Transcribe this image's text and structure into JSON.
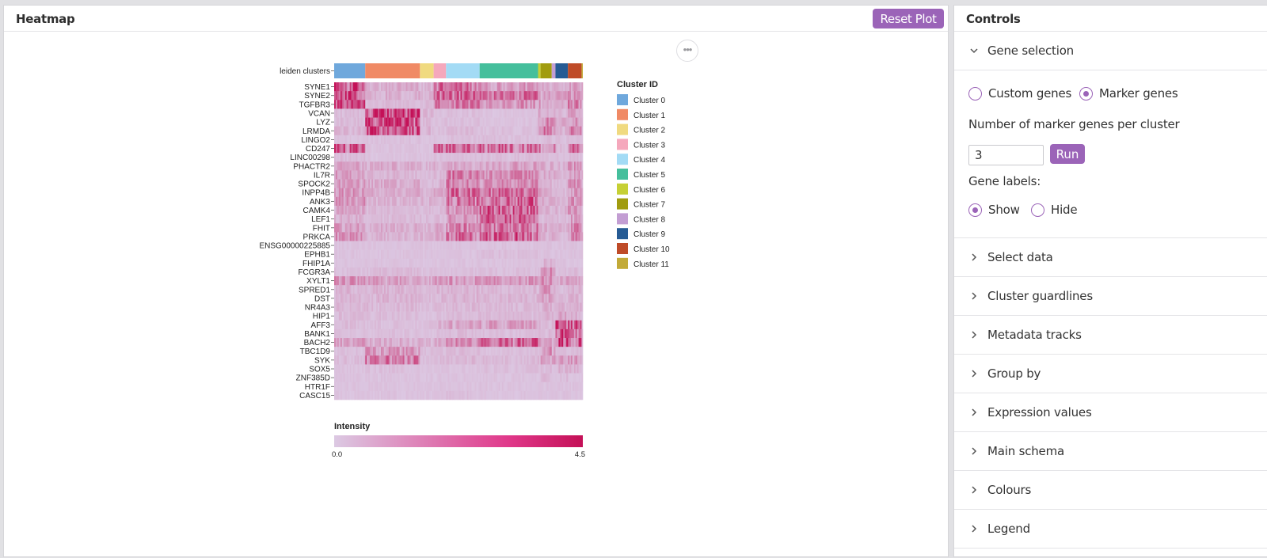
{
  "heatmap_panel": {
    "title": "Heatmap",
    "reset_label": "Reset Plot",
    "more_label": "•••"
  },
  "chart_data": {
    "type": "heatmap",
    "track_label": "leiden clusters",
    "genes": [
      "SYNE1",
      "SYNE2",
      "TGFBR3",
      "VCAN",
      "LYZ",
      "LRMDA",
      "LINGO2",
      "CD247",
      "LINC00298",
      "PHACTR2",
      "IL7R",
      "SPOCK2",
      "INPP4B",
      "ANK3",
      "CAMK4",
      "LEF1",
      "FHIT",
      "PRKCA",
      "ENSG00000225885",
      "EPHB1",
      "FHIP1A",
      "FCGR3A",
      "XYLT1",
      "SPRED1",
      "DST",
      "NR4A3",
      "HIP1",
      "AFF3",
      "BANK1",
      "BACH2",
      "TBC1D9",
      "SYK",
      "SOX5",
      "ZNF385D",
      "HTR1F",
      "CASC15"
    ],
    "legend_title": "Cluster ID",
    "clusters": [
      {
        "name": "Cluster 0",
        "color": "#6fa8dc",
        "proportion": 0.125
      },
      {
        "name": "Cluster 1",
        "color": "#f08a65",
        "proportion": 0.22
      },
      {
        "name": "Cluster 2",
        "color": "#f0da80",
        "proportion": 0.055
      },
      {
        "name": "Cluster 3",
        "color": "#f5a8bc",
        "proportion": 0.05
      },
      {
        "name": "Cluster 4",
        "color": "#a3dbf5",
        "proportion": 0.135
      },
      {
        "name": "Cluster 5",
        "color": "#45bf9c",
        "proportion": 0.235
      },
      {
        "name": "Cluster 6",
        "color": "#c6d035",
        "proportion": 0.01
      },
      {
        "name": "Cluster 7",
        "color": "#a19c0f",
        "proportion": 0.045
      },
      {
        "name": "Cluster 8",
        "color": "#c39ed3",
        "proportion": 0.015
      },
      {
        "name": "Cluster 9",
        "color": "#265b94",
        "proportion": 0.05
      },
      {
        "name": "Cluster 10",
        "color": "#bf4b28",
        "proportion": 0.055
      },
      {
        "name": "Cluster 11",
        "color": "#c2aa38",
        "proportion": 0.005
      }
    ],
    "expression": [
      [
        3.4,
        0.8,
        0.6,
        2.6,
        2.4,
        1.4,
        1.0,
        0.8,
        1.0,
        0.8,
        1.2,
        0.8
      ],
      [
        3.6,
        0.8,
        0.6,
        2.8,
        2.8,
        2.4,
        1.6,
        1.0,
        0.8,
        1.0,
        1.4,
        1.0
      ],
      [
        3.2,
        0.4,
        0.4,
        2.2,
        2.0,
        1.6,
        1.4,
        0.8,
        0.6,
        1.0,
        2.0,
        1.0
      ],
      [
        0.4,
        3.8,
        0.6,
        0.3,
        0.3,
        0.2,
        1.0,
        0.6,
        0.6,
        0.5,
        1.0,
        0.4
      ],
      [
        0.4,
        3.6,
        0.4,
        0.3,
        0.3,
        0.2,
        1.0,
        2.0,
        1.6,
        0.8,
        1.4,
        0.6
      ],
      [
        0.6,
        3.6,
        0.6,
        0.3,
        0.4,
        0.3,
        1.0,
        2.2,
        1.4,
        0.6,
        1.8,
        0.6
      ],
      [
        0.2,
        0.3,
        0.2,
        0.2,
        0.3,
        0.3,
        0.2,
        0.4,
        0.2,
        0.3,
        0.3,
        0.2
      ],
      [
        3.0,
        0.2,
        0.2,
        2.8,
        2.6,
        2.8,
        2.4,
        1.4,
        2.0,
        0.4,
        2.6,
        1.0
      ],
      [
        0.4,
        0.2,
        0.2,
        0.3,
        0.3,
        0.4,
        0.4,
        0.3,
        0.3,
        0.3,
        0.4,
        0.3
      ],
      [
        1.0,
        0.8,
        0.6,
        0.8,
        1.0,
        1.2,
        1.0,
        0.8,
        0.8,
        0.6,
        1.4,
        0.8
      ],
      [
        1.2,
        0.6,
        0.4,
        0.6,
        2.2,
        1.8,
        1.0,
        0.8,
        0.8,
        0.6,
        1.2,
        0.8
      ],
      [
        1.2,
        0.8,
        0.4,
        0.6,
        2.0,
        1.6,
        0.8,
        0.6,
        0.6,
        0.4,
        1.6,
        0.6
      ],
      [
        1.4,
        0.8,
        0.6,
        0.8,
        2.6,
        2.6,
        1.2,
        0.8,
        0.8,
        0.4,
        1.4,
        0.8
      ],
      [
        1.4,
        0.6,
        0.6,
        0.6,
        2.4,
        2.8,
        1.2,
        0.8,
        0.8,
        0.6,
        1.8,
        0.8
      ],
      [
        1.0,
        0.4,
        0.4,
        0.4,
        1.6,
        3.0,
        1.0,
        0.6,
        0.4,
        0.6,
        1.4,
        0.6
      ],
      [
        0.8,
        0.4,
        0.4,
        0.4,
        1.4,
        3.0,
        0.8,
        0.4,
        0.6,
        0.4,
        1.2,
        0.6
      ],
      [
        1.2,
        0.8,
        0.6,
        1.0,
        2.0,
        2.4,
        1.4,
        1.0,
        0.8,
        0.6,
        1.8,
        0.8
      ],
      [
        1.6,
        0.6,
        0.6,
        1.0,
        2.6,
        3.2,
        1.2,
        0.8,
        0.8,
        0.6,
        1.8,
        0.8
      ],
      [
        0.2,
        0.2,
        0.2,
        0.2,
        0.2,
        0.2,
        0.2,
        0.2,
        0.2,
        0.2,
        0.2,
        0.2
      ],
      [
        0.2,
        0.2,
        0.2,
        0.2,
        0.2,
        0.3,
        0.2,
        0.2,
        0.2,
        0.2,
        0.2,
        0.2
      ],
      [
        0.2,
        0.2,
        0.2,
        0.2,
        0.2,
        0.2,
        0.2,
        0.6,
        0.4,
        0.2,
        0.2,
        0.2
      ],
      [
        0.3,
        0.4,
        0.3,
        0.3,
        0.3,
        0.3,
        0.4,
        1.6,
        0.8,
        0.3,
        0.4,
        0.3
      ],
      [
        1.6,
        1.2,
        1.0,
        1.4,
        1.4,
        1.4,
        1.2,
        1.6,
        1.2,
        1.0,
        1.2,
        1.0
      ],
      [
        0.6,
        0.6,
        0.4,
        0.6,
        0.6,
        0.5,
        0.6,
        1.4,
        0.8,
        0.4,
        0.6,
        0.4
      ],
      [
        0.6,
        0.6,
        0.4,
        0.6,
        0.6,
        0.6,
        0.6,
        1.2,
        0.8,
        0.4,
        0.8,
        0.4
      ],
      [
        0.5,
        0.5,
        0.3,
        0.4,
        0.5,
        0.5,
        0.5,
        0.8,
        0.6,
        0.6,
        0.6,
        0.4
      ],
      [
        0.4,
        0.4,
        0.2,
        0.3,
        0.4,
        0.4,
        0.4,
        0.6,
        0.6,
        1.0,
        0.8,
        0.4
      ],
      [
        0.4,
        0.3,
        0.3,
        0.6,
        1.0,
        1.2,
        0.6,
        0.4,
        0.5,
        3.6,
        3.2,
        1.0
      ],
      [
        0.3,
        0.3,
        0.2,
        0.3,
        0.4,
        0.3,
        0.4,
        0.4,
        0.4,
        3.2,
        2.4,
        0.8
      ],
      [
        1.2,
        0.8,
        0.6,
        1.2,
        1.6,
        2.8,
        1.8,
        1.0,
        1.0,
        3.6,
        3.0,
        1.2
      ],
      [
        0.3,
        1.4,
        0.3,
        0.3,
        0.4,
        0.3,
        0.3,
        1.6,
        1.0,
        0.3,
        0.4,
        0.3
      ],
      [
        0.4,
        2.2,
        0.3,
        0.4,
        0.5,
        0.4,
        0.6,
        1.4,
        1.0,
        1.2,
        1.4,
        0.4
      ],
      [
        0.2,
        0.3,
        0.2,
        0.2,
        0.2,
        0.3,
        0.2,
        0.4,
        0.2,
        0.6,
        0.6,
        0.2
      ],
      [
        0.2,
        0.2,
        0.2,
        0.2,
        0.2,
        0.2,
        0.2,
        0.4,
        0.2,
        0.4,
        0.2,
        0.2
      ],
      [
        0.2,
        0.2,
        0.2,
        0.2,
        0.2,
        0.2,
        0.2,
        0.2,
        0.2,
        0.2,
        0.2,
        0.2
      ],
      [
        0.2,
        0.2,
        0.2,
        0.2,
        0.3,
        0.2,
        0.2,
        0.2,
        0.2,
        0.2,
        0.2,
        0.2
      ]
    ],
    "colorbar": {
      "title": "Intensity",
      "min": 0.0,
      "max": 4.5,
      "min_label": "0.0",
      "max_label": "4.5",
      "low_color": "#dcc9e3",
      "high_color": "#c41057"
    }
  },
  "controls": {
    "title": "Controls",
    "gene_selection": {
      "label": "Gene selection",
      "option_custom": "Custom genes",
      "option_marker": "Marker genes",
      "selected": "marker",
      "marker_count_label": "Number of marker genes per cluster",
      "marker_count_value": "3",
      "run_label": "Run",
      "gene_labels_label": "Gene labels:",
      "show_label": "Show",
      "hide_label": "Hide",
      "gene_labels_selected": "show"
    },
    "sections": [
      "Select data",
      "Cluster guardlines",
      "Metadata tracks",
      "Group by",
      "Expression values",
      "Main schema",
      "Colours",
      "Legend"
    ]
  },
  "colors": {
    "accent": "#9b64b8"
  }
}
